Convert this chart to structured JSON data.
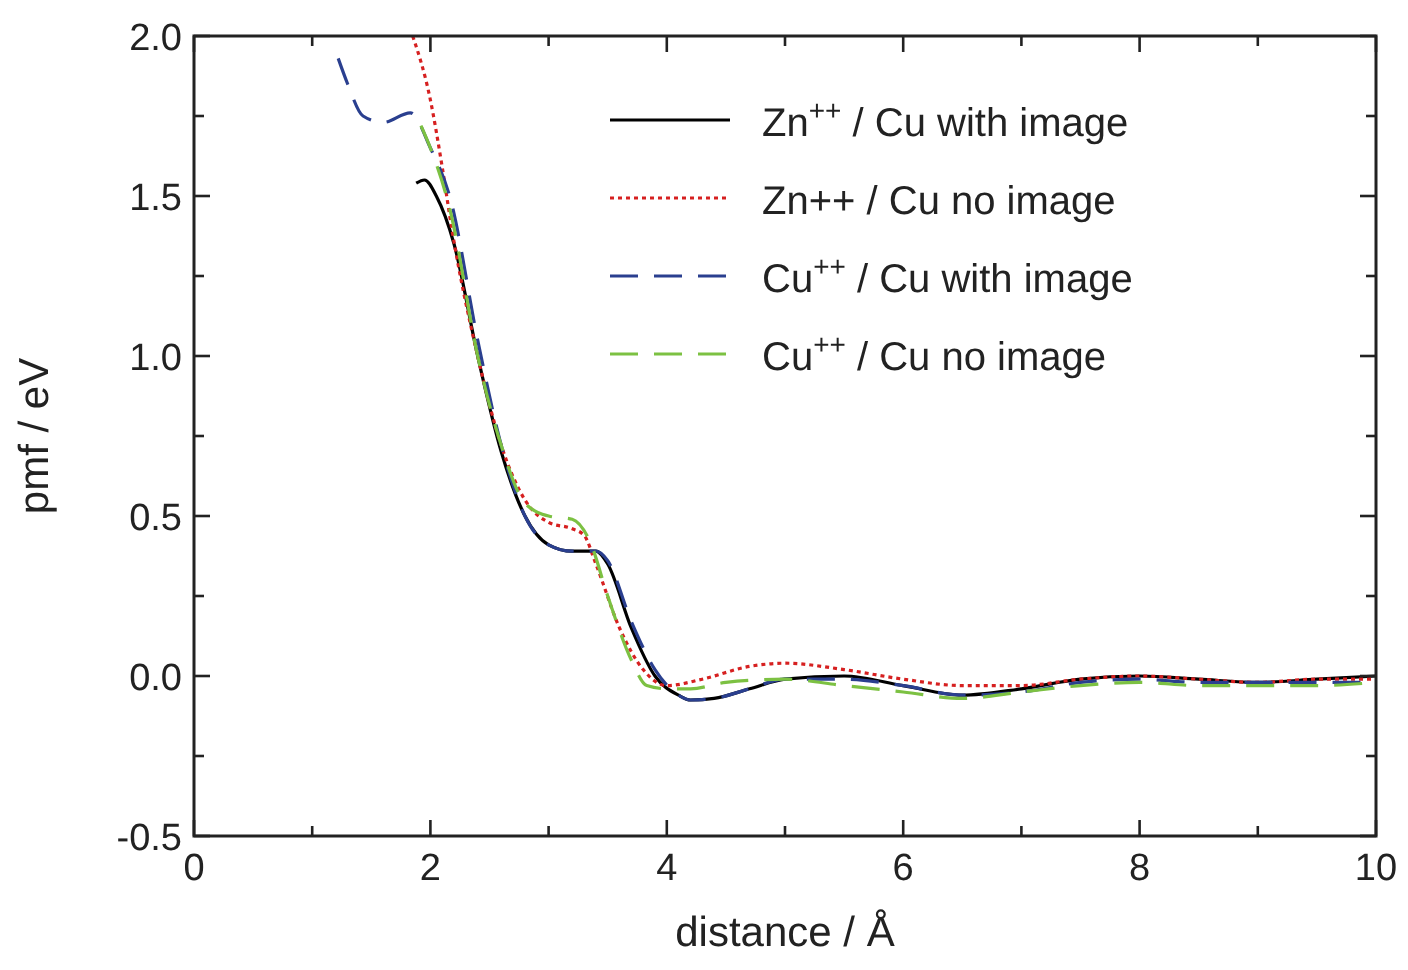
{
  "chart_data": {
    "type": "line",
    "xlabel": "distance / Å",
    "ylabel": "pmf / eV",
    "xlim": [
      0,
      10
    ],
    "ylim": [
      -0.5,
      2.0
    ],
    "xticks": [
      0,
      {
        "value": 1,
        "label": null
      },
      2,
      {
        "value": 3,
        "label": null
      },
      4,
      {
        "value": 5,
        "label": null
      },
      6,
      {
        "value": 7,
        "label": null
      },
      8,
      {
        "value": 9,
        "label": null
      },
      10
    ],
    "yticks": [
      -0.5,
      {
        "value": -0.25,
        "label": null
      },
      {
        "value": 0,
        "label": "0.0"
      },
      {
        "value": 0.25,
        "label": null
      },
      0.5,
      {
        "value": 0.75,
        "label": null
      },
      {
        "value": 1,
        "label": "1.0"
      },
      {
        "value": 1.25,
        "label": null
      },
      1.5,
      {
        "value": 1.75,
        "label": null
      },
      {
        "value": 2,
        "label": "2.0"
      }
    ],
    "grid": false,
    "legend": "top right",
    "series": [
      {
        "name": "Zn$^{++}$ / Cu with image",
        "color": "#000000",
        "line_style": "solid",
        "x": [
          1.88,
          1.95,
          2.05,
          2.2,
          2.4,
          2.6,
          2.8,
          3.0,
          3.2,
          3.4,
          3.5,
          3.7,
          3.9,
          4.1,
          4.2,
          4.4,
          4.7,
          5.0,
          5.5,
          6.0,
          6.5,
          7.0,
          7.5,
          8.0,
          8.5,
          9.0,
          9.5,
          10
        ],
        "values": [
          1.54,
          1.55,
          1.5,
          1.35,
          1.0,
          0.7,
          0.5,
          0.41,
          0.39,
          0.39,
          0.35,
          0.15,
          0.0,
          -0.06,
          -0.075,
          -0.07,
          -0.04,
          -0.01,
          0.0,
          -0.03,
          -0.06,
          -0.04,
          -0.01,
          0.0,
          -0.01,
          -0.02,
          -0.01,
          0.0
        ]
      },
      {
        "name": "Zn++ / Cu no image",
        "color": "#d62020",
        "line_style": "dotted",
        "x": [
          1.85,
          2.0,
          2.1,
          2.18,
          2.4,
          2.6,
          2.8,
          3.0,
          3.2,
          3.3,
          3.4,
          3.6,
          3.8,
          4.0,
          4.3,
          4.7,
          5.0,
          5.5,
          6.0,
          6.5,
          7.0,
          7.5,
          8.0,
          8.5,
          9.0,
          9.5,
          10
        ],
        "values": [
          2.0,
          1.8,
          1.59,
          1.4,
          1.0,
          0.72,
          0.55,
          0.48,
          0.46,
          0.44,
          0.35,
          0.15,
          0.02,
          -0.03,
          -0.01,
          0.03,
          0.04,
          0.02,
          -0.01,
          -0.03,
          -0.03,
          -0.01,
          0.0,
          -0.01,
          -0.02,
          -0.01,
          -0.01
        ]
      },
      {
        "name": "Cu$^{++}$ / Cu with image",
        "color": "#2a3f8f",
        "line_style": "dashed",
        "x": [
          1.22,
          1.3,
          1.43,
          1.6,
          1.83,
          2.0,
          2.17,
          2.4,
          2.6,
          2.8,
          3.0,
          3.2,
          3.4,
          3.5,
          3.7,
          3.9,
          4.1,
          4.2,
          4.4,
          4.7,
          5.0,
          5.5,
          6.0,
          6.5,
          7.0,
          7.5,
          8.0,
          8.5,
          9.0,
          9.5,
          10
        ],
        "values": [
          1.93,
          1.85,
          1.75,
          1.73,
          1.76,
          1.65,
          1.49,
          1.05,
          0.72,
          0.5,
          0.41,
          0.39,
          0.39,
          0.36,
          0.17,
          0.02,
          -0.06,
          -0.075,
          -0.07,
          -0.04,
          -0.01,
          -0.01,
          -0.03,
          -0.06,
          -0.05,
          -0.02,
          -0.01,
          -0.02,
          -0.02,
          -0.02,
          -0.02
        ]
      },
      {
        "name": "Cu$^{++}$ / Cu no image",
        "color": "#7cc142",
        "line_style": "dashed",
        "x": [
          1.92,
          2.0,
          2.17,
          2.4,
          2.6,
          2.8,
          3.0,
          3.2,
          3.35,
          3.5,
          3.7,
          3.83,
          4.0,
          4.2,
          4.5,
          5.0,
          5.5,
          6.0,
          6.5,
          7.0,
          7.5,
          8.0,
          8.5,
          9.0,
          9.5,
          10
        ],
        "values": [
          1.72,
          1.65,
          1.45,
          1.0,
          0.72,
          0.54,
          0.5,
          0.49,
          0.42,
          0.25,
          0.05,
          -0.03,
          -0.04,
          -0.04,
          -0.02,
          -0.01,
          -0.03,
          -0.05,
          -0.07,
          -0.05,
          -0.03,
          -0.02,
          -0.03,
          -0.03,
          -0.03,
          -0.02
        ]
      }
    ]
  }
}
